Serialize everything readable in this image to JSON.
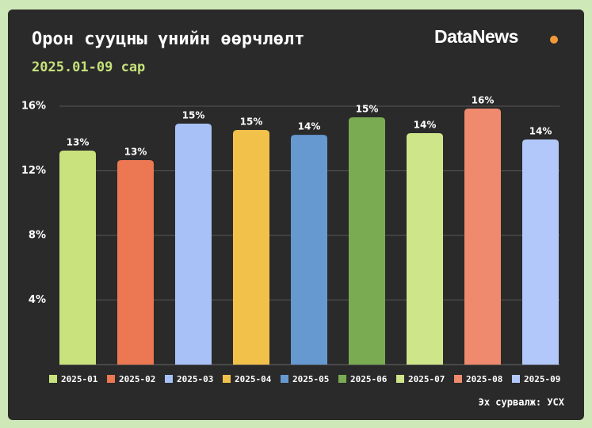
{
  "chart_data": {
    "type": "bar",
    "title": "Орон сууцны үнийн өөрчлөлт",
    "subtitle": "2025.01-09 сар",
    "brand": "DataNews",
    "source": "Эх сурвалж: УСХ",
    "categories": [
      "2025-01",
      "2025-02",
      "2025-03",
      "2025-04",
      "2025-05",
      "2025-06",
      "2025-07",
      "2025-08",
      "2025-09"
    ],
    "values": [
      13.25,
      12.66,
      14.92,
      14.53,
      14.23,
      15.31,
      14.33,
      15.85,
      13.94
    ],
    "value_labels": [
      "13%",
      "13%",
      "15%",
      "15%",
      "14%",
      "15%",
      "14%",
      "16%",
      "14%"
    ],
    "colors": [
      "#c9e27e",
      "#ec7753",
      "#a8c1f7",
      "#f2c14a",
      "#6699d0",
      "#7aab52",
      "#cfe58a",
      "#ef8a6e",
      "#b3c8fa"
    ],
    "ylim": [
      0,
      16
    ],
    "yticks": [
      {
        "value": 4,
        "label": "4%"
      },
      {
        "value": 8,
        "label": "8%"
      },
      {
        "value": 12,
        "label": "12%"
      },
      {
        "value": 16,
        "label": "16%"
      }
    ],
    "grid": true,
    "legend": "bottom"
  }
}
